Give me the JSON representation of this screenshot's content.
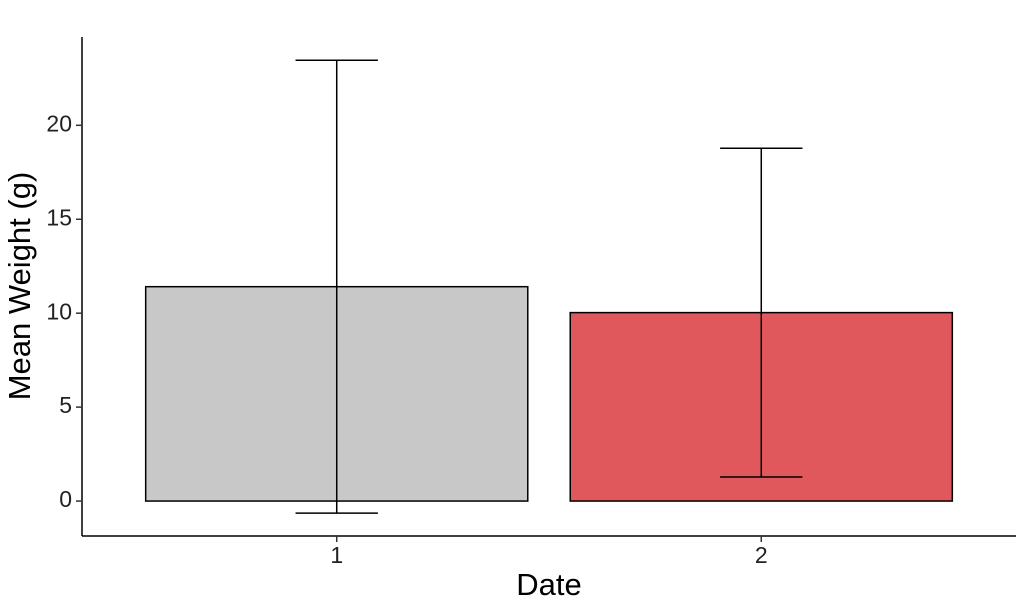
{
  "chart_data": {
    "type": "bar",
    "categories": [
      "1",
      "2"
    ],
    "values": [
      11.41,
      10.03
    ],
    "errors": [
      12.05,
      8.75
    ],
    "colors": [
      "#c8c8c8",
      "#e0585c"
    ],
    "x_label": "Date",
    "y_label": "Mean Weight (g)",
    "ylim": [
      -1.86,
      24.7
    ],
    "yticks": [
      0,
      5,
      10,
      15,
      20
    ],
    "grid": false
  }
}
